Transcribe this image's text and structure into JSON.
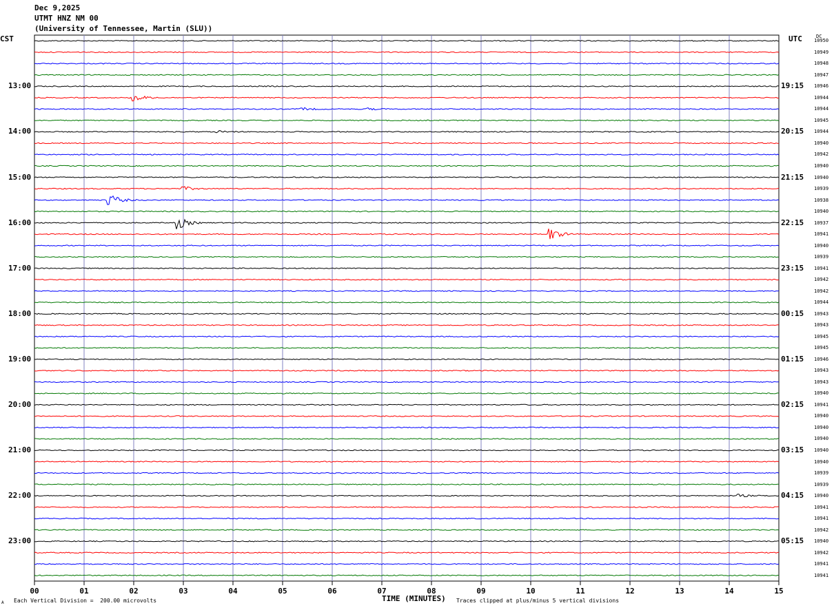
{
  "header": {
    "date": "Dec 9,2025",
    "station": "UTMT HNZ NM 00",
    "institution": "(University of Tennessee, Martin (SLU))"
  },
  "left_zone_label": "CST",
  "right_zone_label": "UTC",
  "dc_label": "DC",
  "footer": {
    "scale_note": "Each Vertical Division =  200.00 microvolts",
    "clip_note": "Traces clipped at plus/minus 5 vertical divisions",
    "corner_mark": "A"
  },
  "colors": {
    "trace_cycle": [
      "#000000",
      "#ff0000",
      "#0000ff",
      "#007700"
    ],
    "grid_vertical": "#8080c0"
  },
  "chart_data": {
    "type": "line",
    "xlabel": "TIME (MINUTES)",
    "xlim": [
      0,
      15
    ],
    "x_ticks": [
      "00",
      "01",
      "02",
      "03",
      "04",
      "05",
      "06",
      "07",
      "08",
      "09",
      "10",
      "11",
      "12",
      "13",
      "14",
      "15"
    ],
    "left_hour_labels": [
      "13:00",
      "14:00",
      "15:00",
      "16:00",
      "17:00",
      "18:00",
      "19:00",
      "20:00",
      "21:00",
      "22:00",
      "23:00"
    ],
    "right_hour_labels": [
      "19:15",
      "20:15",
      "21:15",
      "22:15",
      "23:15",
      "00:15",
      "01:15",
      "02:15",
      "03:15",
      "04:15",
      "05:15"
    ],
    "dc_offsets": [
      "10950",
      "10949",
      "10948",
      "10947",
      "10946",
      "10944",
      "10944",
      "10945",
      "10944",
      "10940",
      "10942",
      "10940",
      "10940",
      "10939",
      "10938",
      "10940",
      "10937",
      "10941",
      "10940",
      "10939",
      "10941",
      "10942",
      "10942",
      "10944",
      "10943",
      "10943",
      "10945",
      "10945",
      "10946",
      "10943",
      "10943",
      "10940",
      "10941",
      "10940",
      "10940",
      "10940",
      "10940",
      "10940",
      "10939",
      "10939",
      "10940",
      "10941",
      "10941",
      "10942",
      "10940",
      "10942",
      "10941",
      "10941"
    ],
    "events": [
      {
        "row": 5,
        "minute": 2.0,
        "amplitude": 6
      },
      {
        "row": 6,
        "minute": 5.4,
        "amplitude": 2
      },
      {
        "row": 6,
        "minute": 6.7,
        "amplitude": 1.5
      },
      {
        "row": 8,
        "minute": 3.7,
        "amplitude": 1.5
      },
      {
        "row": 13,
        "minute": 3.0,
        "amplitude": 3
      },
      {
        "row": 14,
        "minute": 1.5,
        "amplitude": 10
      },
      {
        "row": 16,
        "minute": 2.9,
        "amplitude": 9
      },
      {
        "row": 17,
        "minute": 10.4,
        "amplitude": 9
      },
      {
        "row": 40,
        "minute": 14.2,
        "amplitude": 2
      }
    ]
  }
}
